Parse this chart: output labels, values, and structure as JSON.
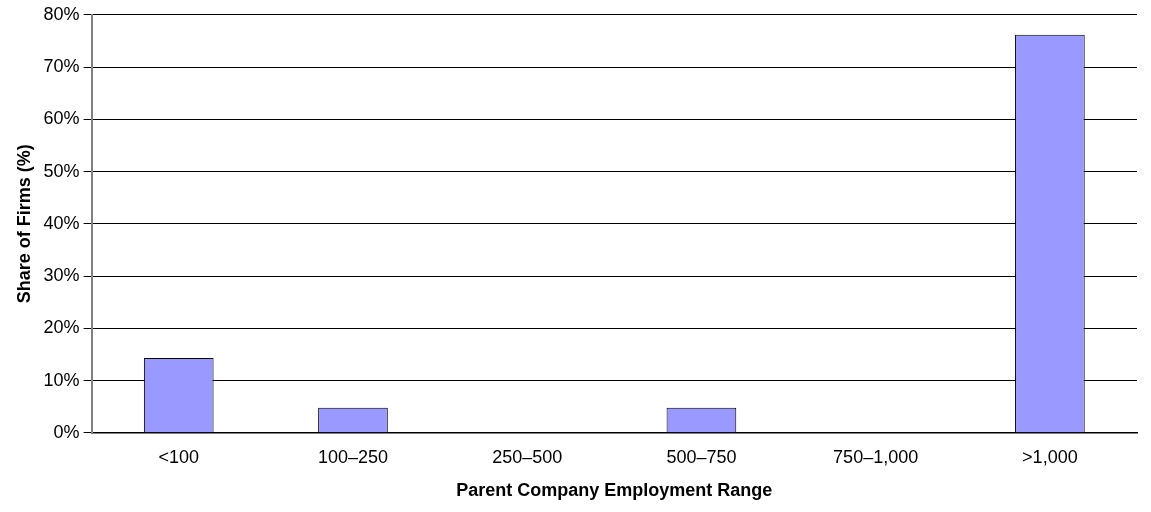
{
  "chart_data": {
    "type": "bar",
    "xlabel": "Parent Company Employment Range",
    "ylabel": "Share of Firms (%)",
    "categories": [
      "<100",
      "100–250",
      "250–500",
      "500–750",
      "750–1,000",
      ">1,000"
    ],
    "values": [
      14.3,
      4.8,
      0,
      4.8,
      0,
      76.2
    ],
    "color": "#9999ff",
    "ylim": [
      0,
      80
    ],
    "yticks": [
      {
        "value": 0,
        "label": "0%"
      },
      {
        "value": 10,
        "label": "10%"
      },
      {
        "value": 20,
        "label": "20%"
      },
      {
        "value": 30,
        "label": "30%"
      },
      {
        "value": 40,
        "label": "40%"
      },
      {
        "value": 50,
        "label": "50%"
      },
      {
        "value": 60,
        "label": "60%"
      },
      {
        "value": 70,
        "label": "70%"
      },
      {
        "value": 80,
        "label": "80%"
      }
    ],
    "grid": "y",
    "legend": false
  }
}
